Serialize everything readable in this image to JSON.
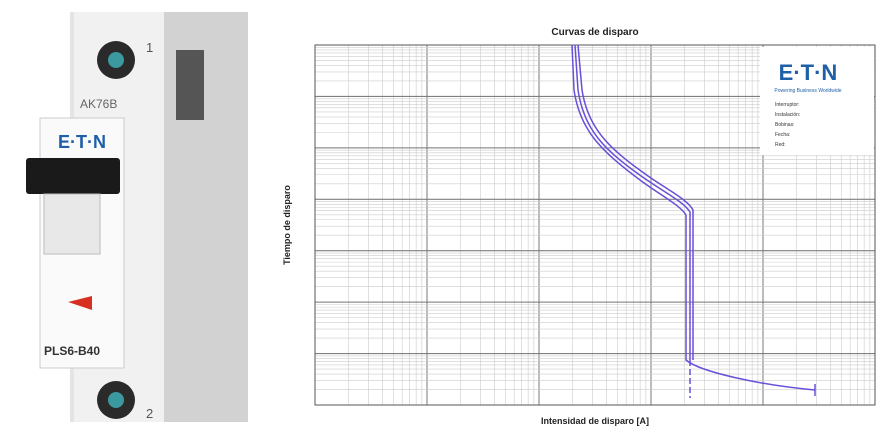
{
  "photo": {
    "terminal_top": "1",
    "label_code": "AK76B",
    "brand": "E·T·N",
    "model": "PLS6-B40",
    "terminal_bottom": "2"
  },
  "chart": {
    "title": "Curvas de disparo",
    "y_axis_label": "Tiempo de disparo",
    "x_axis_label": "Intensidad de disparo [A]",
    "logo": "E·T·N",
    "tagline": "Powering Business Worldwide",
    "fields": [
      "Interruptor:",
      "Instalación:",
      "Bobinas:",
      "Fecha:",
      "Red:"
    ]
  }
}
